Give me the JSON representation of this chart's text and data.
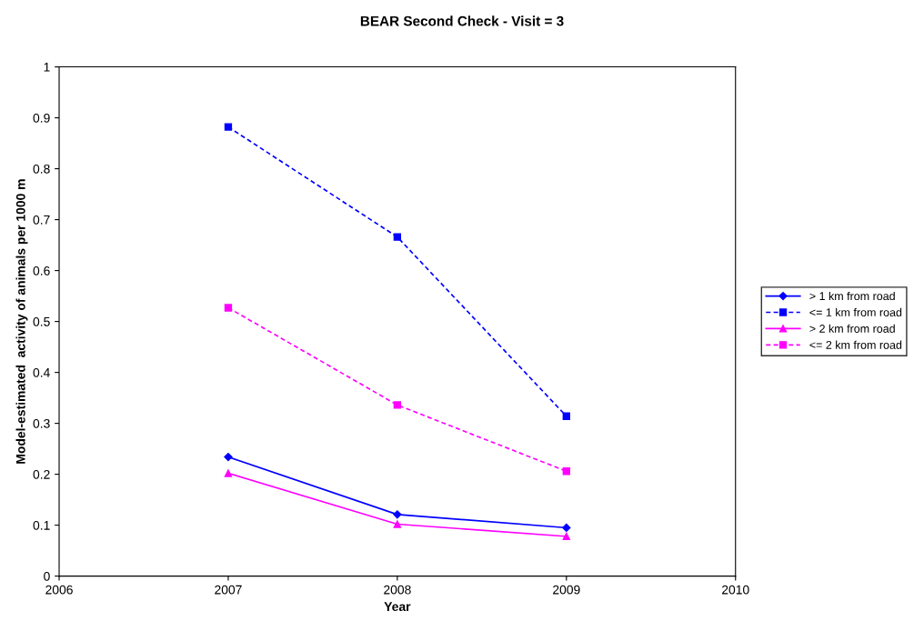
{
  "chart_data": {
    "type": "line",
    "title": "BEAR Second Check - Visit = 3",
    "xlabel": "Year",
    "ylabel": "Model-estimated  activity of animals per 1000 m",
    "x": [
      2007,
      2008,
      2009
    ],
    "series": [
      {
        "name": "> 1 km from road",
        "color": "#0000ff",
        "values": [
          0.234,
          0.121,
          0.095
        ],
        "marker": "diamond",
        "line_style": "solid"
      },
      {
        "name": "<= 1 km from road",
        "color": "#0000ff",
        "values": [
          0.882,
          0.666,
          0.314
        ],
        "marker": "square",
        "line_style": "dashed"
      },
      {
        "name": "> 2 km from road",
        "color": "#ff00ff",
        "values": [
          0.202,
          0.102,
          0.078
        ],
        "marker": "triangle",
        "line_style": "solid"
      },
      {
        "name": "<= 2 km from road",
        "color": "#ff00ff",
        "values": [
          0.527,
          0.336,
          0.206
        ],
        "marker": "square",
        "line_style": "dashed"
      }
    ],
    "xlim": [
      2006,
      2010
    ],
    "xticks": [
      2006,
      2007,
      2008,
      2009,
      2010
    ],
    "ylim": [
      0,
      1
    ],
    "yticks": [
      0,
      0.1,
      0.2,
      0.3,
      0.4,
      0.5,
      0.6,
      0.7,
      0.8,
      0.9,
      1
    ],
    "grid": false,
    "legend": "right"
  }
}
